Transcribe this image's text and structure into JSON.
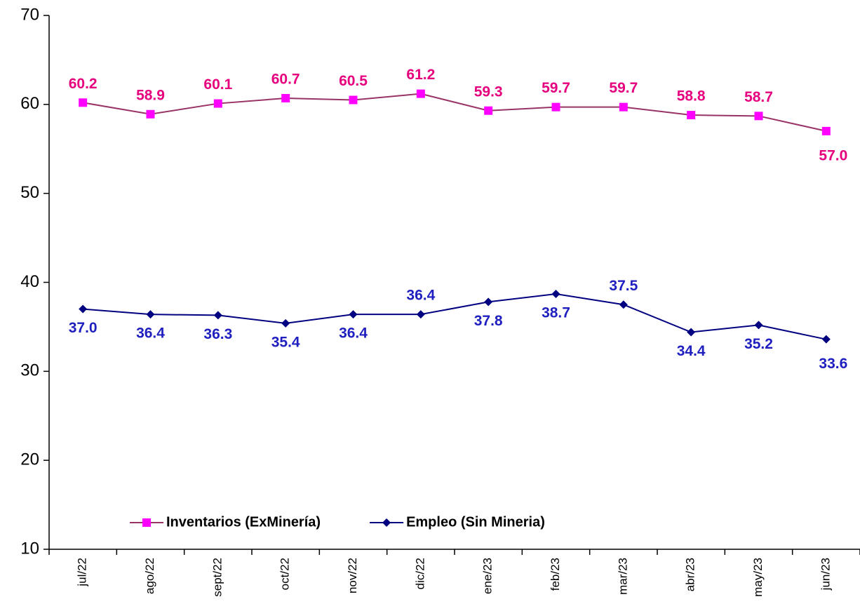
{
  "chart_data": {
    "type": "line",
    "categories": [
      "jul/22",
      "ago/22",
      "sept/22",
      "oct/22",
      "nov/22",
      "dic/22",
      "ene/23",
      "feb/23",
      "mar/23",
      "abr/23",
      "may/23",
      "jun/23"
    ],
    "series": [
      {
        "name": "Inventarios (ExMinería)",
        "color": "#993366",
        "marker_color": "#ff00ff",
        "marker": "square",
        "label_color": "#e6007e",
        "values": [
          60.2,
          58.9,
          60.1,
          60.7,
          60.5,
          61.2,
          59.3,
          59.7,
          59.7,
          58.8,
          58.7,
          57.0
        ],
        "value_labels": [
          "60.2",
          "58.9",
          "60.1",
          "60.7",
          "60.5",
          "61.2",
          "59.3",
          "59.7",
          "59.7",
          "58.8",
          "58.7",
          "57.0"
        ]
      },
      {
        "name": "Empleo (Sin Mineria)",
        "color": "#000080",
        "marker_color": "#000080",
        "marker": "diamond",
        "label_color": "#1f1fbf",
        "values": [
          37.0,
          36.4,
          36.3,
          35.4,
          36.4,
          36.4,
          37.8,
          38.7,
          37.5,
          34.4,
          35.2,
          33.6
        ],
        "value_labels": [
          "37.0",
          "36.4",
          "36.3",
          "35.4",
          "36.4",
          "36.4",
          "37.8",
          "38.7",
          "37.5",
          "34.4",
          "35.2",
          "33.6"
        ]
      }
    ],
    "ylim": [
      10,
      70
    ],
    "yticks": [
      10,
      20,
      30,
      40,
      50,
      60,
      70
    ],
    "grid": false,
    "legend": "bottom"
  }
}
